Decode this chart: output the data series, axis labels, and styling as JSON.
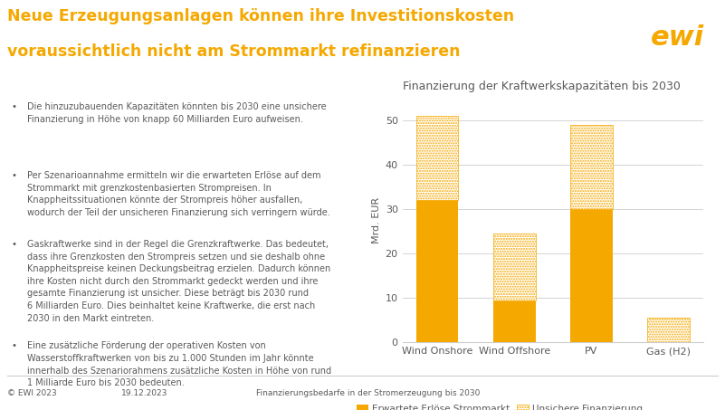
{
  "categories": [
    "Wind Onshore",
    "Wind Offshore",
    "PV",
    "Gas (H2)"
  ],
  "solid_values": [
    32.0,
    9.5,
    30.0,
    0.0
  ],
  "dotted_values": [
    19.0,
    15.0,
    19.0,
    5.5
  ],
  "solid_color": "#F5A800",
  "dotted_color": "#F5A800",
  "background_color": "#FFFFFF",
  "chart_title": "Finanzierung der Kraftwerkskapazitäten bis 2030",
  "ylabel": "Mrd. EUR",
  "ylim": [
    0,
    55
  ],
  "yticks": [
    0,
    10,
    20,
    30,
    40,
    50
  ],
  "legend_solid_label": "Erwartete Erlöse Strommarkt",
  "legend_dotted_label": "Unsichere Finanzierung",
  "bar_width": 0.55,
  "page_title_line1": "Neue Erzeugungsanlagen können ihre Investitionskosten",
  "page_title_line2": "voraussichtlich nicht am Strommarkt refinanzieren",
  "title_color": "#F5A800",
  "text_color": "#5A5A5A",
  "grid_color": "#CCCCCC",
  "footer_left": "© EWI 2023",
  "footer_center": "19.12.2023",
  "footer_right": "Finanzierungsbedarfe in der Stromerzeugung bis 2030",
  "bullet_texts": [
    "Die hinzuzubauenden Kapazitäten könnten bis 2030 eine unsichere\nFinanzierung in Höhe von knapp 60 Milliarden Euro aufweisen.",
    "Per Szenarioannahme ermitteln wir die erwarteten Erlöse auf dem\nStrommarkt mit grenzkostenbasierten Strompreisen. In\nKnappheitssituationen könnte der Strompreis höher ausfallen,\nwodurch der Teil der unsicheren Finanzierung sich verringern würde.",
    "Gaskraftwerke sind in der Regel die Grenzkraftwerke. Das bedeutet,\ndass ihre Grenzkosten den Strompreis setzen und sie deshalb ohne\nKnappheitspreise keinen Deckungsbeitrag erzielen. Dadurch können\nihre Kosten nicht durch den Strommarkt gedeckt werden und ihre\ngesamte Finanzierung ist unsicher. Diese beträgt bis 2030 rund\n6 Milliarden Euro. Dies beinhaltet keine Kraftwerke, die erst nach\n2030 in den Markt eintreten.",
    "Eine zusätzliche Förderung der operativen Kosten von\nWasserstoffkraftwerken von bis zu 1.000 Stunden im Jahr könnte\ninnerhalb des Szenariorahmens zusätzliche Kosten in Höhe von rund\n1 Milliarde Euro bis 2030 bedeuten."
  ]
}
